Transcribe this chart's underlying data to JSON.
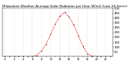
{
  "title": "Milwaukee Weather Average Solar Radiation per Hour W/m2 (Last 24 Hours)",
  "hours": [
    0,
    1,
    2,
    3,
    4,
    5,
    6,
    7,
    8,
    9,
    10,
    11,
    12,
    13,
    14,
    15,
    16,
    17,
    18,
    19,
    20,
    21,
    22,
    23
  ],
  "values": [
    0,
    0,
    0,
    0,
    0,
    0,
    2,
    15,
    60,
    130,
    230,
    340,
    420,
    460,
    410,
    330,
    220,
    110,
    30,
    5,
    0,
    0,
    0,
    0
  ],
  "line_color": "red",
  "bg_color": "#ffffff",
  "grid_color": "#888888",
  "ylim": [
    0,
    500
  ],
  "yticks": [
    50,
    100,
    150,
    200,
    250,
    300,
    350,
    400,
    450,
    500
  ],
  "xtick_step": 2,
  "ylabel_fontsize": 2.8,
  "xlabel_fontsize": 2.5,
  "title_fontsize": 3.0
}
